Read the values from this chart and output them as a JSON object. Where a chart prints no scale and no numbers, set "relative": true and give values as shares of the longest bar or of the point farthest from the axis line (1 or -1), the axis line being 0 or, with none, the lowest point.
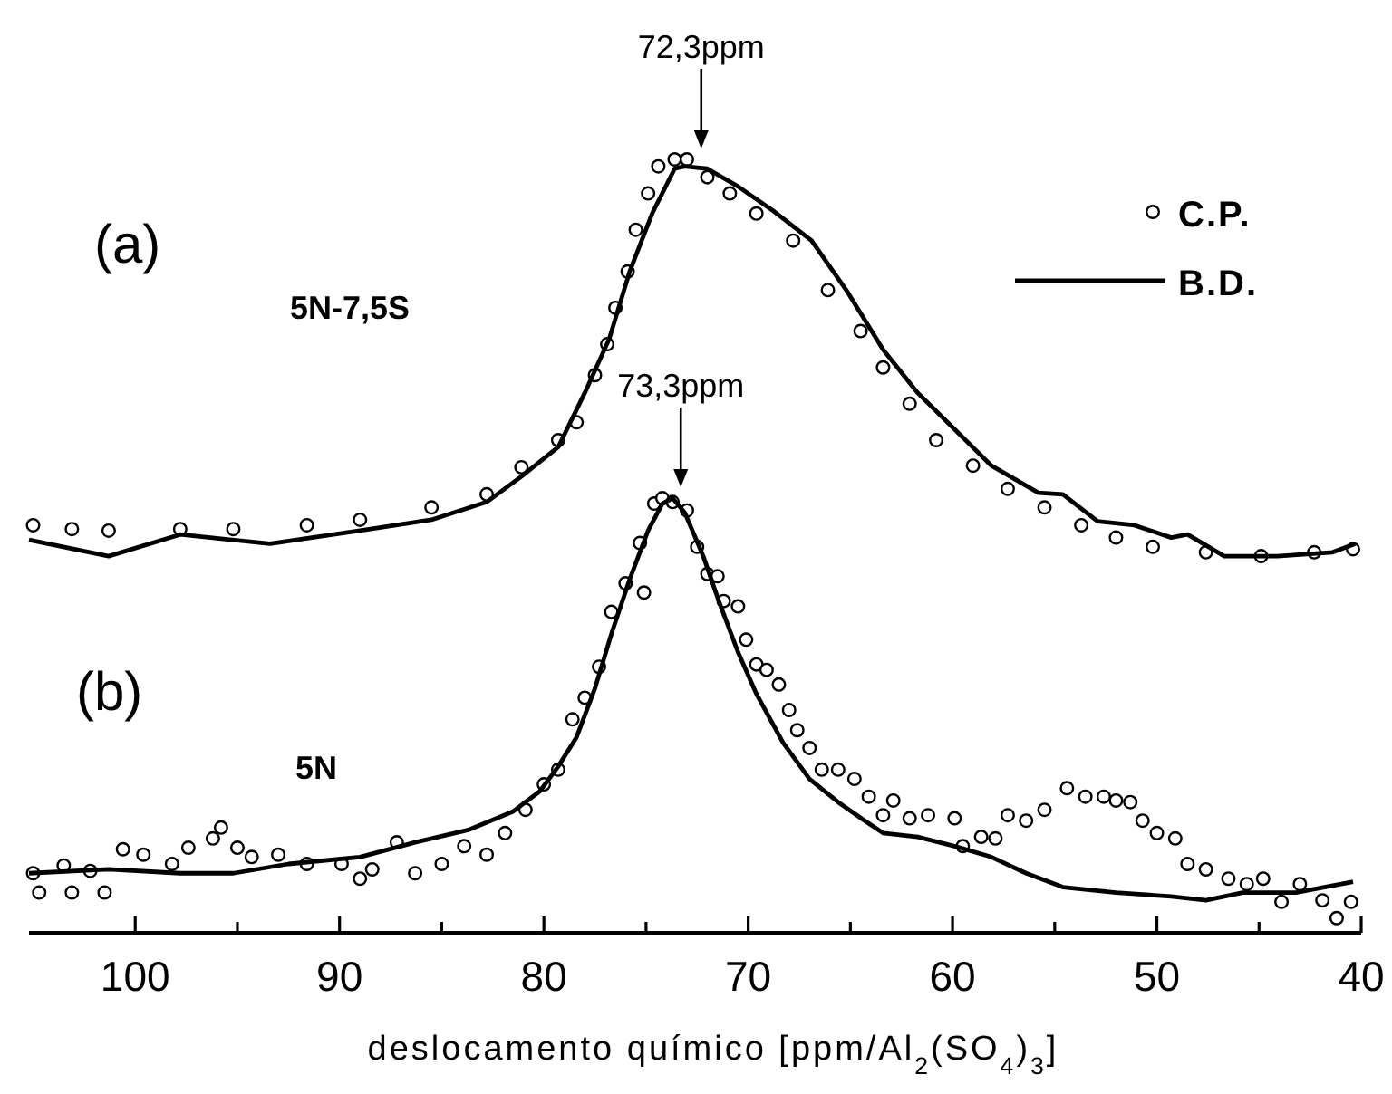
{
  "chart_data": {
    "type": "line",
    "relative": true,
    "xlabel": "deslocamento químico [ppm/Al$_{2}$(SO$_{4}$)$_{3}$]",
    "xlim": [
      105.2,
      40
    ],
    "xticks": [
      100,
      {
        "value": 95,
        "label": null
      },
      90,
      {
        "value": 85,
        "label": null
      },
      80,
      {
        "value": 75,
        "label": null
      },
      70,
      {
        "value": 65,
        "label": null
      },
      60,
      {
        "value": 55,
        "label": null
      },
      50,
      {
        "value": 45,
        "label": null
      },
      40
    ],
    "legend": "top right",
    "grid": false,
    "annotations": [
      "(a)",
      "5N-7,5S",
      "(b)",
      "5N",
      {
        "text": "72,3ppm",
        "x": 72.3,
        "y": 1.0
      },
      {
        "text": "73,3ppm",
        "x": 73.3,
        "y": 0.562
      }
    ],
    "series": [
      {
        "name": "C.P.",
        "type": "scatter",
        "marker": "circle",
        "color": "#000000",
        "x": [
          105.0,
          103.1,
          101.3,
          97.8,
          95.2,
          91.6,
          89.0,
          85.5,
          82.8,
          81.1,
          79.3,
          78.4,
          77.5,
          76.9,
          76.5,
          75.9,
          75.5,
          74.9,
          74.4,
          73.6,
          73.0,
          72.0,
          70.9,
          69.6,
          67.8,
          66.1,
          64.5,
          63.4,
          62.1,
          60.8,
          59.0,
          57.3,
          55.5,
          53.7,
          52.0,
          50.2,
          47.6,
          44.9,
          42.3,
          40.4
        ],
        "values": [
          0.527,
          0.522,
          0.52,
          0.522,
          0.522,
          0.527,
          0.534,
          0.55,
          0.567,
          0.602,
          0.637,
          0.66,
          0.721,
          0.761,
          0.808,
          0.855,
          0.909,
          0.956,
          0.991,
          1.0,
          1.0,
          0.977,
          0.956,
          0.93,
          0.895,
          0.831,
          0.778,
          0.731,
          0.684,
          0.637,
          0.604,
          0.574,
          0.55,
          0.527,
          0.511,
          0.499,
          0.492,
          0.487,
          0.492,
          0.496
        ]
      },
      {
        "name": "B.D.",
        "type": "line",
        "line_style": "solid",
        "color": "#000000",
        "x": [
          105.2,
          101.3,
          97.8,
          93.4,
          89.0,
          85.5,
          82.8,
          81.1,
          79.3,
          78.0,
          76.8,
          75.8,
          74.7,
          73.6,
          73.1,
          72.0,
          70.5,
          68.7,
          66.9,
          65.2,
          63.4,
          61.7,
          59.9,
          58.1,
          55.8,
          54.6,
          52.9,
          51.1,
          49.3,
          48.5,
          46.7,
          44.1,
          41.4,
          40.3
        ],
        "values": [
          0.508,
          0.487,
          0.515,
          0.503,
          0.52,
          0.534,
          0.557,
          0.59,
          0.628,
          0.698,
          0.768,
          0.855,
          0.93,
          0.988,
          0.991,
          0.988,
          0.965,
          0.932,
          0.895,
          0.831,
          0.754,
          0.698,
          0.651,
          0.604,
          0.569,
          0.567,
          0.532,
          0.527,
          0.511,
          0.515,
          0.487,
          0.487,
          0.492,
          0.503
        ]
      },
      {
        "type": "scatter",
        "marker": "circle",
        "color": "#000000",
        "x": [
          105.0,
          104.7,
          103.5,
          103.1,
          102.2,
          101.5,
          100.6,
          99.6,
          98.2,
          97.4,
          96.2,
          95.8,
          95.0,
          94.3,
          93.0,
          91.6,
          89.9,
          89.0,
          88.4,
          87.2,
          86.3,
          85.0,
          83.9,
          82.8,
          81.9,
          80.9,
          80.0,
          79.3,
          78.6,
          78.0,
          77.3,
          76.7,
          76.0,
          75.3,
          75.1,
          74.6,
          74.2,
          73.7,
          73.0,
          72.5,
          72.0,
          71.5,
          71.2,
          70.5,
          70.1,
          69.6,
          69.1,
          68.5,
          68.0,
          67.6,
          67.0,
          66.4,
          65.6,
          64.8,
          64.1,
          63.4,
          62.9,
          62.1,
          61.2,
          59.9,
          59.5,
          58.6,
          57.9,
          57.3,
          56.4,
          55.5,
          54.4,
          53.5,
          52.6,
          52.0,
          51.3,
          50.7,
          50.0,
          49.1,
          48.5,
          47.6,
          46.5,
          45.6,
          44.8,
          43.9,
          43.0,
          41.9,
          41.2,
          40.5
        ],
        "values": [
          0.077,
          0.052,
          0.087,
          0.052,
          0.08,
          0.052,
          0.108,
          0.101,
          0.089,
          0.11,
          0.122,
          0.136,
          0.11,
          0.098,
          0.101,
          0.089,
          0.089,
          0.07,
          0.082,
          0.117,
          0.077,
          0.089,
          0.112,
          0.101,
          0.129,
          0.159,
          0.192,
          0.211,
          0.276,
          0.304,
          0.344,
          0.415,
          0.452,
          0.504,
          0.44,
          0.555,
          0.562,
          0.557,
          0.546,
          0.499,
          0.464,
          0.461,
          0.429,
          0.422,
          0.379,
          0.347,
          0.34,
          0.321,
          0.288,
          0.262,
          0.239,
          0.211,
          0.211,
          0.199,
          0.176,
          0.152,
          0.171,
          0.148,
          0.152,
          0.148,
          0.112,
          0.124,
          0.122,
          0.152,
          0.145,
          0.159,
          0.187,
          0.176,
          0.176,
          0.171,
          0.169,
          0.145,
          0.129,
          0.122,
          0.089,
          0.082,
          0.07,
          0.063,
          0.07,
          0.04,
          0.063,
          0.042,
          0.019,
          0.04
        ]
      },
      {
        "type": "line",
        "line_style": "solid",
        "color": "#000000",
        "x": [
          105.2,
          101.3,
          97.8,
          95.2,
          92.5,
          89.0,
          86.3,
          83.7,
          81.5,
          80.2,
          79.3,
          78.4,
          77.5,
          76.7,
          75.8,
          74.9,
          74.2,
          73.7,
          73.1,
          72.2,
          71.4,
          70.5,
          69.6,
          68.3,
          67.0,
          65.6,
          64.3,
          63.4,
          61.7,
          59.9,
          58.1,
          56.4,
          54.6,
          52.0,
          49.3,
          47.6,
          45.8,
          43.2,
          40.4
        ],
        "values": [
          0.077,
          0.082,
          0.077,
          0.077,
          0.089,
          0.098,
          0.117,
          0.133,
          0.157,
          0.183,
          0.215,
          0.253,
          0.316,
          0.386,
          0.457,
          0.52,
          0.555,
          0.562,
          0.543,
          0.487,
          0.426,
          0.363,
          0.309,
          0.246,
          0.199,
          0.169,
          0.145,
          0.129,
          0.124,
          0.112,
          0.098,
          0.077,
          0.059,
          0.052,
          0.047,
          0.042,
          0.052,
          0.052,
          0.066
        ]
      }
    ]
  }
}
